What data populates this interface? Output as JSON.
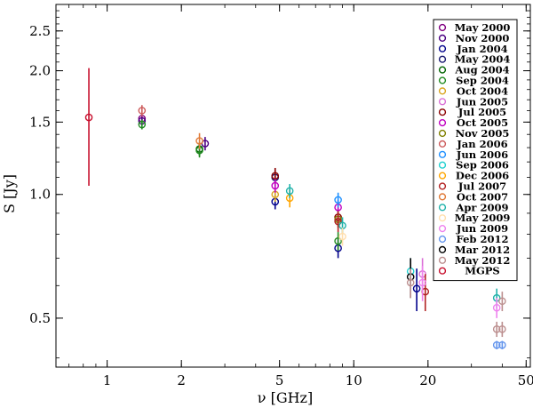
{
  "chart_data": {
    "type": "scatter",
    "title": "",
    "xlabel": "ν [GHz]",
    "ylabel": "S [Jy]",
    "xscale": "log",
    "yscale": "log",
    "xlim": [
      0.62,
      52
    ],
    "ylim": [
      0.38,
      2.9
    ],
    "xticks": [
      1,
      2,
      5,
      10,
      20,
      50
    ],
    "xtick_labels": [
      "1",
      "2",
      "5",
      "10",
      "20",
      "50"
    ],
    "yticks": [
      0.5,
      1.0,
      1.5,
      2.0,
      2.5
    ],
    "ytick_labels": [
      "0.5",
      "1.0",
      "1.5",
      "2.0",
      "2.5"
    ],
    "grid": false,
    "legend_position": "top-right",
    "marker": "open-circle-with-errorbar",
    "series": [
      {
        "name": "May 2000",
        "color": "#800080",
        "points": [
          {
            "x": 1.384,
            "y": 1.53,
            "err": 0.03
          }
        ]
      },
      {
        "name": "Nov 2000",
        "color": "#4b0082",
        "points": [
          {
            "x": 1.384,
            "y": 1.51,
            "err": 0.03
          },
          {
            "x": 2.496,
            "y": 1.33,
            "err": 0.05
          }
        ]
      },
      {
        "name": "Jan 2004",
        "color": "#00008b",
        "points": [
          {
            "x": 4.8,
            "y": 0.96,
            "err": 0.04
          },
          {
            "x": 8.64,
            "y": 0.74,
            "err": 0.04
          },
          {
            "x": 18.0,
            "y": 0.59,
            "err": 0.07
          }
        ]
      },
      {
        "name": "May 2004",
        "color": "#191970",
        "points": [
          {
            "x": 4.8,
            "y": 1.1,
            "err": 0.05
          }
        ]
      },
      {
        "name": "Aug 2004",
        "color": "#006400",
        "points": [
          {
            "x": 2.368,
            "y": 1.29,
            "err": 0.05
          }
        ]
      },
      {
        "name": "Sep 2004",
        "color": "#228b22",
        "points": [
          {
            "x": 1.384,
            "y": 1.48,
            "err": 0.04
          },
          {
            "x": 2.368,
            "y": 1.28,
            "err": 0.05
          },
          {
            "x": 8.64,
            "y": 0.77,
            "err": 0.04
          }
        ]
      },
      {
        "name": "Oct 2004",
        "color": "#daa520",
        "points": [
          {
            "x": 4.8,
            "y": 1.0,
            "err": 0.04
          }
        ]
      },
      {
        "name": "Jun 2005",
        "color": "#da70d6",
        "points": [
          {
            "x": 19.0,
            "y": 0.64,
            "err": 0.06
          }
        ]
      },
      {
        "name": "Jul 2005",
        "color": "#8b0000",
        "points": [
          {
            "x": 4.8,
            "y": 1.11,
            "err": 0.05
          },
          {
            "x": 8.64,
            "y": 0.88,
            "err": 0.04
          }
        ]
      },
      {
        "name": "Oct 2005",
        "color": "#c000c0",
        "points": [
          {
            "x": 4.8,
            "y": 1.05,
            "err": 0.04
          },
          {
            "x": 8.64,
            "y": 0.93,
            "err": 0.04
          }
        ]
      },
      {
        "name": "Nov 2005",
        "color": "#808000",
        "points": [
          {
            "x": 8.64,
            "y": 0.87,
            "err": 0.04
          }
        ]
      },
      {
        "name": "Jan 2006",
        "color": "#cd5c5c",
        "points": [
          {
            "x": 1.384,
            "y": 1.6,
            "err": 0.05
          }
        ]
      },
      {
        "name": "Jun 2006",
        "color": "#1e90ff",
        "points": [
          {
            "x": 8.64,
            "y": 0.97,
            "err": 0.04
          }
        ]
      },
      {
        "name": "Sep 2006",
        "color": "#20d0d0",
        "points": [
          {
            "x": 17.0,
            "y": 0.65,
            "err": 0.05
          }
        ]
      },
      {
        "name": "Dec 2006",
        "color": "#ffa500",
        "points": [
          {
            "x": 5.5,
            "y": 0.98,
            "err": 0.05
          }
        ]
      },
      {
        "name": "Jul 2007",
        "color": "#b22222",
        "points": [
          {
            "x": 8.64,
            "y": 0.86,
            "err": 0.05
          },
          {
            "x": 19.5,
            "y": 0.58,
            "err": 0.06
          }
        ]
      },
      {
        "name": "Oct 2007",
        "color": "#e07b39",
        "points": [
          {
            "x": 2.368,
            "y": 1.35,
            "err": 0.06
          }
        ]
      },
      {
        "name": "Apr 2009",
        "color": "#20b2aa",
        "points": [
          {
            "x": 5.5,
            "y": 1.02,
            "err": 0.04
          },
          {
            "x": 9.0,
            "y": 0.84,
            "err": 0.04
          },
          {
            "x": 38.0,
            "y": 0.56,
            "err": 0.03
          }
        ]
      },
      {
        "name": "May 2009",
        "color": "#ffdead",
        "points": [
          {
            "x": 9.0,
            "y": 0.79,
            "err": 0.04
          }
        ]
      },
      {
        "name": "Jun 2009",
        "color": "#ee82ee",
        "points": [
          {
            "x": 19.0,
            "y": 0.61,
            "err": 0.06
          },
          {
            "x": 38.0,
            "y": 0.53,
            "err": 0.03
          }
        ]
      },
      {
        "name": "Feb 2012",
        "color": "#6495ed",
        "points": [
          {
            "x": 38.0,
            "y": 0.43,
            "err": 0.01
          },
          {
            "x": 40.0,
            "y": 0.43,
            "err": 0.01
          }
        ]
      },
      {
        "name": "Mar 2012",
        "color": "#000000",
        "points": [
          {
            "x": 17.0,
            "y": 0.63,
            "err": 0.07
          }
        ]
      },
      {
        "name": "May 2012",
        "color": "#bc8f8f",
        "points": [
          {
            "x": 17.0,
            "y": 0.61,
            "err": 0.05
          },
          {
            "x": 38.0,
            "y": 0.47,
            "err": 0.02
          },
          {
            "x": 40.0,
            "y": 0.47,
            "err": 0.02
          },
          {
            "x": 40.0,
            "y": 0.55,
            "err": 0.03
          }
        ]
      },
      {
        "name": "MGPS",
        "color": "#c8102e",
        "points": [
          {
            "x": 0.843,
            "y": 1.54,
            "err": 0.49
          }
        ]
      }
    ]
  }
}
